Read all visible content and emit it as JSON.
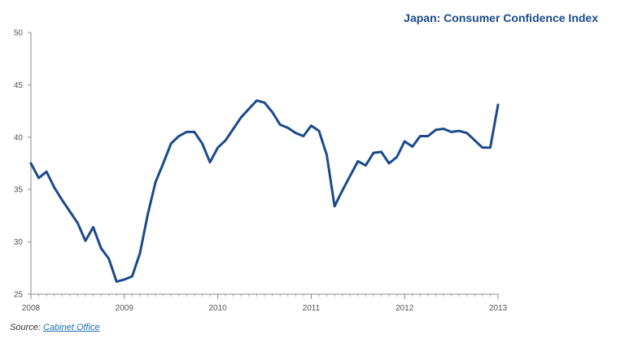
{
  "chart_data": {
    "type": "line",
    "title": "Japan: Consumer Confidence Index",
    "xlabel": "",
    "ylabel": "",
    "xlim": [
      2008.0,
      2013.0
    ],
    "ylim": [
      25,
      50
    ],
    "yticks": [
      25,
      30,
      35,
      40,
      45,
      50
    ],
    "xticks": [
      2008,
      2009,
      2010,
      2011,
      2012,
      2013
    ],
    "xtick_labels": [
      "2008",
      "2009",
      "2010",
      "2011",
      "2012",
      "2013"
    ],
    "grid": false,
    "series": [
      {
        "color": "#1b4a8a",
        "x": [
          "2008-01",
          "2008-02",
          "2008-03",
          "2008-04",
          "2008-05",
          "2008-06",
          "2008-07",
          "2008-08",
          "2008-09",
          "2008-10",
          "2008-11",
          "2008-12",
          "2009-01",
          "2009-02",
          "2009-03",
          "2009-04",
          "2009-05",
          "2009-06",
          "2009-07",
          "2009-08",
          "2009-09",
          "2009-10",
          "2009-11",
          "2009-12",
          "2010-01",
          "2010-02",
          "2010-03",
          "2010-04",
          "2010-05",
          "2010-06",
          "2010-07",
          "2010-08",
          "2010-09",
          "2010-10",
          "2010-11",
          "2010-12",
          "2011-01",
          "2011-02",
          "2011-03",
          "2011-04",
          "2011-05",
          "2011-06",
          "2011-07",
          "2011-08",
          "2011-09",
          "2011-10",
          "2011-11",
          "2011-12",
          "2012-01",
          "2012-02",
          "2012-03",
          "2012-04",
          "2012-05",
          "2012-06",
          "2012-07",
          "2012-08",
          "2012-09",
          "2012-10",
          "2012-11",
          "2012-12",
          "2013-01"
        ],
        "values": [
          37.5,
          36.1,
          36.7,
          35.2,
          34.0,
          32.9,
          31.8,
          30.1,
          31.4,
          29.4,
          28.4,
          26.2,
          26.4,
          26.7,
          28.9,
          32.6,
          35.7,
          37.5,
          39.4,
          40.1,
          40.5,
          40.5,
          39.4,
          37.6,
          39.0,
          39.7,
          40.8,
          41.9,
          42.7,
          43.5,
          43.3,
          42.4,
          41.2,
          40.9,
          40.4,
          40.1,
          41.1,
          40.6,
          38.3,
          33.4,
          34.9,
          36.3,
          37.7,
          37.3,
          38.5,
          38.6,
          37.5,
          38.1,
          39.6,
          39.1,
          40.1,
          40.1,
          40.7,
          40.8,
          40.5,
          40.6,
          40.4,
          39.7,
          39.0,
          39.0,
          43.1
        ]
      }
    ]
  },
  "source": {
    "prefix": "Source: ",
    "link_text": "Cabinet Office"
  }
}
